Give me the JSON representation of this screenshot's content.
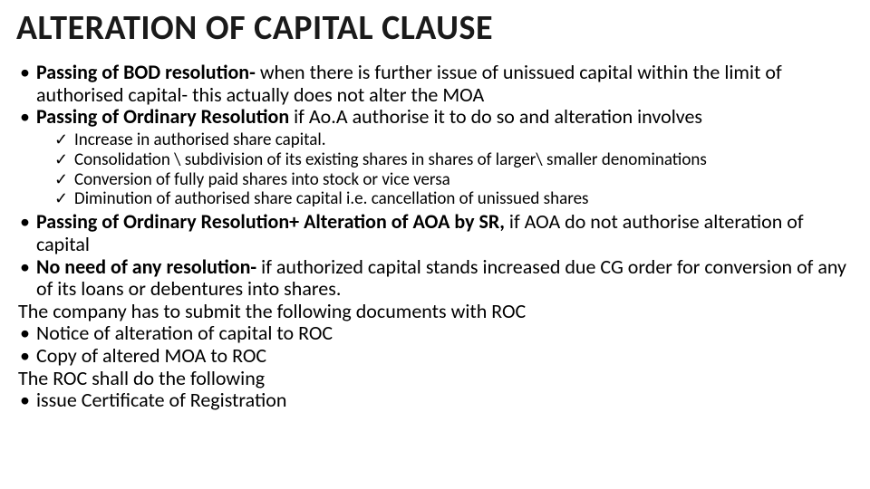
{
  "title": "ALTERATION OF CAPITAL CLAUSE",
  "title_color": "#1a1a1a",
  "title_fontsize": 38,
  "body_fontsize": 22,
  "sub_fontsize": 19,
  "background_color": "#ffffff",
  "text_color": "#000000",
  "bullets1": [
    {
      "bold": "Passing of BOD resolution- ",
      "rest": "when there is further issue of unissued capital within the limit of authorised capital- this actually does not alter the MOA"
    },
    {
      "bold": "Passing of Ordinary Resolution ",
      "rest": "if  Ao.A authorise it to do so and alteration involves"
    }
  ],
  "checks": [
    "Increase in authorised share capital.",
    "Consolidation \\ subdivision of its existing shares in shares of larger\\ smaller denominations",
    "Conversion of fully paid shares into stock or vice versa",
    "Diminution of authorised share capital i.e. cancellation of unissued shares"
  ],
  "bullets2": [
    {
      "bold": "Passing of Ordinary Resolution+ Alteration of AOA by SR, ",
      "rest": "if AOA do not authorise alteration of capital"
    },
    {
      "bold": "No need of any resolution- ",
      "rest": "if authorized capital stands increased due CG order for conversion of any of its loans or debentures into shares."
    }
  ],
  "line1": "The company has to submit the following documents with ROC",
  "bullets3": [
    "Notice of alteration of capital to ROC",
    "Copy of altered MOA to ROC"
  ],
  "line2": "The ROC shall do the following",
  "bullets4": [
    "issue Certificate of Registration"
  ]
}
